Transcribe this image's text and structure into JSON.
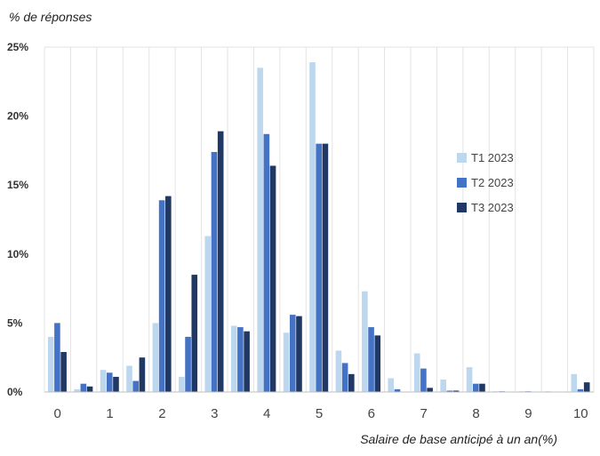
{
  "chart_data": {
    "type": "bar",
    "ylabel": "% de réponses",
    "xlabel": "Salaire de base anticipé à un an(%)",
    "categories": [
      "0",
      "",
      "1",
      "",
      "2",
      "",
      "3",
      "",
      "4",
      "",
      "5",
      "",
      "6",
      "",
      "7",
      "",
      "8",
      "",
      "9",
      "",
      "10"
    ],
    "y_ticks": [
      "0%",
      "5%",
      "10%",
      "15%",
      "20%",
      "25%"
    ],
    "ylim": [
      0,
      25
    ],
    "grid": "vertical-light",
    "legend_position": "right",
    "series": [
      {
        "name": "T1 2023",
        "color": "#bdd7ee",
        "values": [
          4.0,
          0.2,
          1.6,
          1.9,
          5.0,
          1.1,
          11.3,
          4.8,
          23.5,
          4.3,
          23.9,
          3.0,
          7.3,
          1.0,
          2.8,
          0.9,
          1.8,
          0.05,
          0.05,
          0.05,
          1.3
        ]
      },
      {
        "name": "T2 2023",
        "color": "#4472c4",
        "values": [
          5.0,
          0.6,
          1.4,
          0.8,
          13.9,
          4.0,
          17.4,
          4.7,
          18.7,
          5.6,
          18.0,
          2.1,
          4.7,
          0.2,
          1.7,
          0.1,
          0.6,
          0.05,
          0.05,
          0.0,
          0.2
        ]
      },
      {
        "name": "T3 2023",
        "color": "#203864",
        "values": [
          2.9,
          0.4,
          1.1,
          2.5,
          14.2,
          8.5,
          18.9,
          4.4,
          16.4,
          5.5,
          18.0,
          1.3,
          4.1,
          0.0,
          0.3,
          0.1,
          0.6,
          0.0,
          0.0,
          0.0,
          0.7
        ]
      }
    ]
  }
}
